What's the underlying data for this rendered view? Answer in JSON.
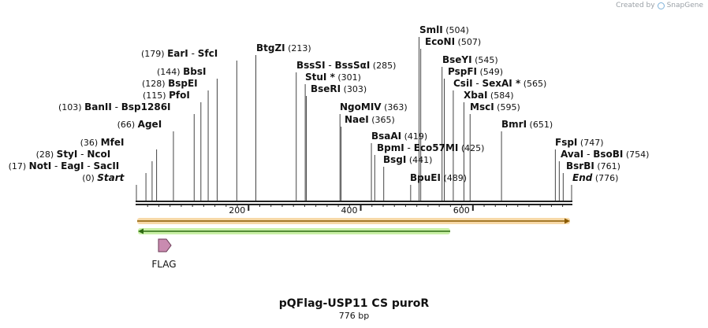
{
  "credit": {
    "created_by": "Created by",
    "app": "SnapGene"
  },
  "map": {
    "title": "pQFlag-USP11 CS puroR",
    "length_label": "776 bp",
    "total_bp": 776,
    "ruler_ticks": [
      200,
      400,
      600
    ],
    "feature_label": "FLAG"
  },
  "sites": [
    {
      "enzymes": [
        "SmlI"
      ],
      "pos": 504
    },
    {
      "enzymes": [
        "EcoNI"
      ],
      "pos": 507
    },
    {
      "enzymes": [
        "EarI",
        "SfcI"
      ],
      "pos": 179
    },
    {
      "enzymes": [
        "BtgZI"
      ],
      "pos": 213
    },
    {
      "enzymes": [
        "BseYI"
      ],
      "pos": 545
    },
    {
      "enzymes": [
        "BssSI",
        "BssSαI"
      ],
      "pos": 285
    },
    {
      "enzymes": [
        "PspFI"
      ],
      "pos": 549
    },
    {
      "enzymes": [
        "BbsI"
      ],
      "pos": 144
    },
    {
      "enzymes": [
        "StuI *"
      ],
      "pos": 301
    },
    {
      "enzymes": [
        "CsiI",
        "SexAI *"
      ],
      "pos": 565
    },
    {
      "enzymes": [
        "BspEI"
      ],
      "pos": 128
    },
    {
      "enzymes": [
        "BseRI"
      ],
      "pos": 303
    },
    {
      "enzymes": [
        "XbaI"
      ],
      "pos": 584
    },
    {
      "enzymes": [
        "PfoI"
      ],
      "pos": 115
    },
    {
      "enzymes": [
        "BanII",
        "Bsp1286I"
      ],
      "pos": 103
    },
    {
      "enzymes": [
        "NgoMIV"
      ],
      "pos": 363
    },
    {
      "enzymes": [
        "MscI"
      ],
      "pos": 595
    },
    {
      "enzymes": [
        "NaeI"
      ],
      "pos": 365
    },
    {
      "enzymes": [
        "AgeI"
      ],
      "pos": 66
    },
    {
      "enzymes": [
        "BmrI"
      ],
      "pos": 651
    },
    {
      "enzymes": [
        "BsaAI"
      ],
      "pos": 419
    },
    {
      "enzymes": [
        "MfeI"
      ],
      "pos": 36
    },
    {
      "enzymes": [
        "FspI"
      ],
      "pos": 747
    },
    {
      "enzymes": [
        "StyI",
        "NcoI"
      ],
      "pos": 28
    },
    {
      "enzymes": [
        "BpmI",
        "Eco57MI"
      ],
      "pos": 425
    },
    {
      "enzymes": [
        "AvaI",
        "BsoBI"
      ],
      "pos": 754
    },
    {
      "enzymes": [
        "BsgI"
      ],
      "pos": 441
    },
    {
      "enzymes": [
        "NotI",
        "EagI",
        "SacII"
      ],
      "pos": 17
    },
    {
      "enzymes": [
        "BsrBI"
      ],
      "pos": 761
    },
    {
      "enzymes": [
        "Start"
      ],
      "pos": 0
    },
    {
      "enzymes": [
        "BpuEI"
      ],
      "pos": 489
    },
    {
      "enzymes": [
        "End"
      ],
      "pos": 776
    }
  ],
  "colors": {
    "backbone": "#222222",
    "orange_feature": "#f5a623",
    "orange_fill": "#f7d9a8",
    "green_feature": "#3a8a1a",
    "green_fill": "#c9f0a6",
    "flag_fill": "#c98bb0"
  }
}
